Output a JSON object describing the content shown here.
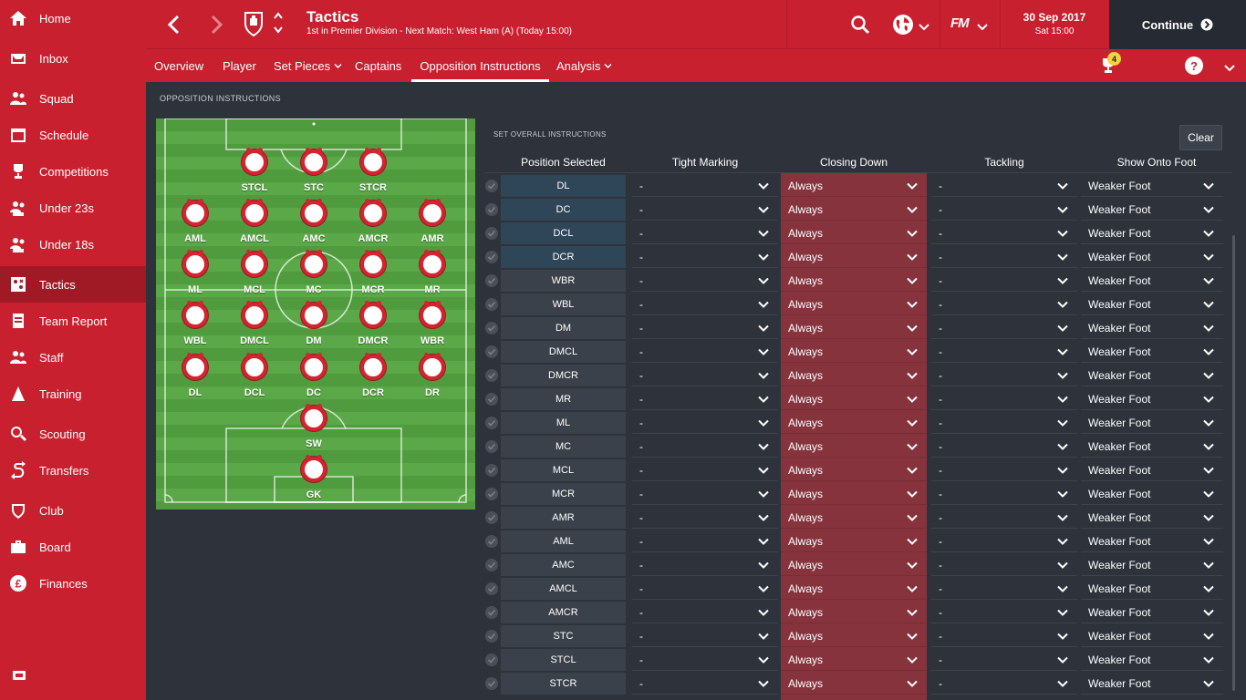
{
  "sidebar": {
    "items": [
      {
        "label": "Home",
        "icon": "home-icon"
      },
      {
        "label": "Inbox",
        "icon": "inbox-icon"
      },
      {
        "label": "Squad",
        "icon": "squad-icon"
      },
      {
        "label": "Schedule",
        "icon": "schedule-icon"
      },
      {
        "label": "Competitions",
        "icon": "trophy-icon"
      },
      {
        "label": "Under 23s",
        "icon": "under23-icon"
      },
      {
        "label": "Under 18s",
        "icon": "under18-icon"
      },
      {
        "label": "Tactics",
        "icon": "tactics-icon"
      },
      {
        "label": "Team Report",
        "icon": "report-icon"
      },
      {
        "label": "Staff",
        "icon": "staff-icon"
      },
      {
        "label": "Training",
        "icon": "training-icon"
      },
      {
        "label": "Scouting",
        "icon": "scouting-icon"
      },
      {
        "label": "Transfers",
        "icon": "transfers-icon"
      },
      {
        "label": "Club",
        "icon": "club-icon"
      },
      {
        "label": "Board",
        "icon": "board-icon"
      },
      {
        "label": "Finances",
        "icon": "finances-icon"
      }
    ],
    "active": "Tactics"
  },
  "header": {
    "title": "Tactics",
    "subtitle": "1st in Premier Division - Next Match: West Ham (A) (Today 15:00)",
    "brand": "FM",
    "date": "30 Sep 2017",
    "time": "Sat 15:00",
    "continue_label": "Continue"
  },
  "subnav": {
    "tabs": [
      {
        "label": "Overview",
        "dropdown": false
      },
      {
        "label": "Player",
        "dropdown": false
      },
      {
        "label": "Set Pieces",
        "dropdown": true
      },
      {
        "label": "Captains",
        "dropdown": false
      },
      {
        "label": "Opposition Instructions",
        "dropdown": false
      },
      {
        "label": "Analysis",
        "dropdown": true
      }
    ],
    "active": "Opposition Instructions",
    "notification_count": "4",
    "help_label": "?"
  },
  "main": {
    "section_title": "OPPOSITION INSTRUCTIONS",
    "set_title": "SET OVERALL INSTRUCTIONS",
    "clear_label": "Clear"
  },
  "pitch": {
    "positions": [
      "STCL",
      "STC",
      "STCR",
      "AML",
      "AMCL",
      "AMC",
      "AMCR",
      "AMR",
      "ML",
      "MCL",
      "MC",
      "MCR",
      "MR",
      "WBL",
      "DMCL",
      "DM",
      "DMCR",
      "WBR",
      "DL",
      "DCL",
      "DC",
      "DCR",
      "DR",
      "SW",
      "GK"
    ]
  },
  "table": {
    "columns": [
      "Position Selected",
      "Tight Marking",
      "Closing Down",
      "Tackling",
      "Show Onto Foot"
    ],
    "rows": [
      {
        "position": "DL",
        "tight": "-",
        "closing": "Always",
        "tackling": "-",
        "foot": "Weaker Foot"
      },
      {
        "position": "DC",
        "tight": "-",
        "closing": "Always",
        "tackling": "-",
        "foot": "Weaker Foot"
      },
      {
        "position": "DCL",
        "tight": "-",
        "closing": "Always",
        "tackling": "-",
        "foot": "Weaker Foot"
      },
      {
        "position": "DCR",
        "tight": "-",
        "closing": "Always",
        "tackling": "-",
        "foot": "Weaker Foot"
      },
      {
        "position": "WBR",
        "tight": "-",
        "closing": "Always",
        "tackling": "-",
        "foot": "Weaker Foot"
      },
      {
        "position": "WBL",
        "tight": "-",
        "closing": "Always",
        "tackling": "-",
        "foot": "Weaker Foot"
      },
      {
        "position": "DM",
        "tight": "-",
        "closing": "Always",
        "tackling": "-",
        "foot": "Weaker Foot"
      },
      {
        "position": "DMCL",
        "tight": "-",
        "closing": "Always",
        "tackling": "-",
        "foot": "Weaker Foot"
      },
      {
        "position": "DMCR",
        "tight": "-",
        "closing": "Always",
        "tackling": "-",
        "foot": "Weaker Foot"
      },
      {
        "position": "MR",
        "tight": "-",
        "closing": "Always",
        "tackling": "-",
        "foot": "Weaker Foot"
      },
      {
        "position": "ML",
        "tight": "-",
        "closing": "Always",
        "tackling": "-",
        "foot": "Weaker Foot"
      },
      {
        "position": "MC",
        "tight": "-",
        "closing": "Always",
        "tackling": "-",
        "foot": "Weaker Foot"
      },
      {
        "position": "MCL",
        "tight": "-",
        "closing": "Always",
        "tackling": "-",
        "foot": "Weaker Foot"
      },
      {
        "position": "MCR",
        "tight": "-",
        "closing": "Always",
        "tackling": "-",
        "foot": "Weaker Foot"
      },
      {
        "position": "AMR",
        "tight": "-",
        "closing": "Always",
        "tackling": "-",
        "foot": "Weaker Foot"
      },
      {
        "position": "AML",
        "tight": "-",
        "closing": "Always",
        "tackling": "-",
        "foot": "Weaker Foot"
      },
      {
        "position": "AMC",
        "tight": "-",
        "closing": "Always",
        "tackling": "-",
        "foot": "Weaker Foot"
      },
      {
        "position": "AMCL",
        "tight": "-",
        "closing": "Always",
        "tackling": "-",
        "foot": "Weaker Foot"
      },
      {
        "position": "AMCR",
        "tight": "-",
        "closing": "Always",
        "tackling": "-",
        "foot": "Weaker Foot"
      },
      {
        "position": "STC",
        "tight": "-",
        "closing": "Always",
        "tackling": "-",
        "foot": "Weaker Foot"
      },
      {
        "position": "STCL",
        "tight": "-",
        "closing": "Always",
        "tackling": "-",
        "foot": "Weaker Foot"
      },
      {
        "position": "STCR",
        "tight": "-",
        "closing": "Always",
        "tackling": "-",
        "foot": "Weaker Foot"
      }
    ]
  },
  "colors": {
    "brand_red": "#c8202f",
    "background": "#2e333b",
    "closing_highlight": "#87333d",
    "pitch_green": "#5aa847"
  }
}
